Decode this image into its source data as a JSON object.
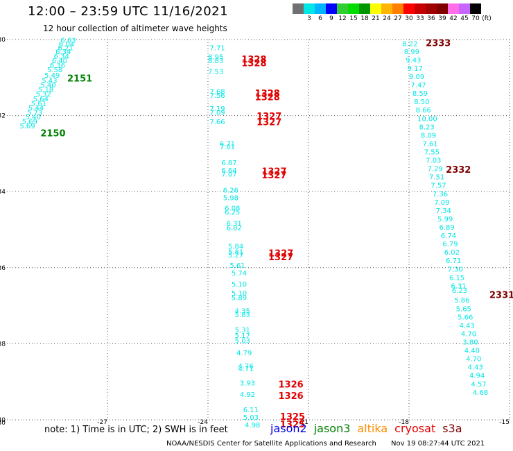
{
  "header": {
    "title": "12:00 – 23:59 UTC 11/16/2021",
    "subtitle": "12 hour collection of altimeter wave heights"
  },
  "color_scale": {
    "unit": "(ft)",
    "colors": [
      "#707070",
      "#00e5e5",
      "#00b4ff",
      "#0000ff",
      "#32cd32",
      "#00dc00",
      "#009600",
      "#ffff00",
      "#ffb400",
      "#ff7f00",
      "#ff0000",
      "#c80000",
      "#a00000",
      "#800000",
      "#ff6ee6",
      "#c864ff",
      "#000000"
    ],
    "labels": [
      "",
      "3",
      "6",
      "9",
      "12",
      "15",
      "18",
      "21",
      "24",
      "27",
      "30",
      "33",
      "36",
      "39",
      "42",
      "45",
      "70"
    ]
  },
  "chart_data": {
    "type": "scatter",
    "title": "12:00 – 23:59 UTC 11/16/2021",
    "subtitle": "12 hour collection of altimeter wave heights",
    "xlim": [
      -30,
      -15
    ],
    "ylim": [
      -40,
      -30
    ],
    "x_ticks": [
      "-27",
      "-24",
      "-21",
      "-18",
      "-15"
    ],
    "y_ticks": [
      "-30",
      "-32",
      "-34",
      "-36",
      "-38",
      "-40"
    ],
    "corner_label": "-30",
    "grid": true,
    "series": [
      {
        "name": "left track",
        "color": "#00e5e5",
        "points": [
          {
            "x": -28.4,
            "y": -30.08,
            "v": "6.63"
          },
          {
            "x": -28.45,
            "y": -30.18,
            "v": "6.04"
          },
          {
            "x": -28.48,
            "y": -30.28,
            "v": "6.21"
          },
          {
            "x": -28.55,
            "y": -30.38,
            "v": "6.34"
          },
          {
            "x": -28.6,
            "y": -30.5,
            "v": "6.34"
          },
          {
            "x": -28.66,
            "y": -30.62,
            "v": "6.40"
          },
          {
            "x": -28.72,
            "y": -30.74,
            "v": "6.36"
          },
          {
            "x": -28.8,
            "y": -30.86,
            "v": "5.58"
          },
          {
            "x": -28.88,
            "y": -31.0,
            "v": "5.49"
          },
          {
            "x": -28.96,
            "y": -31.14,
            "v": "5.43"
          },
          {
            "x": -29.0,
            "y": -31.26,
            "v": "5.40"
          },
          {
            "x": -29.07,
            "y": -31.38,
            "v": "5.18"
          },
          {
            "x": -29.14,
            "y": -31.5,
            "v": "5.32"
          },
          {
            "x": -29.22,
            "y": -31.62,
            "v": "5.64"
          },
          {
            "x": -29.28,
            "y": -31.74,
            "v": "5.61"
          },
          {
            "x": -29.36,
            "y": -31.86,
            "v": "5.44"
          },
          {
            "x": -29.4,
            "y": -31.98,
            "v": "5.73"
          },
          {
            "x": -29.45,
            "y": -32.1,
            "v": "5.40"
          },
          {
            "x": -29.55,
            "y": -32.22,
            "v": "5.69"
          },
          {
            "x": -29.62,
            "y": -32.34,
            "v": "5.69"
          }
        ]
      },
      {
        "name": "middle track",
        "color": "#00e5e5",
        "points": [
          {
            "x": -23.95,
            "y": -30.28,
            "v": "7.71"
          },
          {
            "x": -24.0,
            "y": -30.52,
            "v": "8.95"
          },
          {
            "x": -24.0,
            "y": -30.62,
            "v": "8.83"
          },
          {
            "x": -24.0,
            "y": -30.9,
            "v": "7.53"
          },
          {
            "x": -23.95,
            "y": -31.43,
            "v": "7.68"
          },
          {
            "x": -23.95,
            "y": -31.53,
            "v": "7.56"
          },
          {
            "x": -23.95,
            "y": -31.88,
            "v": "7.19"
          },
          {
            "x": -23.95,
            "y": -31.98,
            "v": "7.09"
          },
          {
            "x": -23.95,
            "y": -32.23,
            "v": "7.66"
          },
          {
            "x": -23.65,
            "y": -32.8,
            "v": "6.71"
          },
          {
            "x": -23.65,
            "y": -32.88,
            "v": "7.01"
          },
          {
            "x": -23.6,
            "y": -33.3,
            "v": "6.87"
          },
          {
            "x": -23.6,
            "y": -33.5,
            "v": "6.64"
          },
          {
            "x": -23.6,
            "y": -33.6,
            "v": "7.07"
          },
          {
            "x": -23.55,
            "y": -34.02,
            "v": "6.26"
          },
          {
            "x": -23.55,
            "y": -34.22,
            "v": "5.98"
          },
          {
            "x": -23.5,
            "y": -34.5,
            "v": "6.08"
          },
          {
            "x": -23.5,
            "y": -34.6,
            "v": "6.25"
          },
          {
            "x": -23.45,
            "y": -34.9,
            "v": "6.31"
          },
          {
            "x": -23.45,
            "y": -35.02,
            "v": "6.82"
          },
          {
            "x": -23.4,
            "y": -35.5,
            "v": "5.84"
          },
          {
            "x": -23.4,
            "y": -35.65,
            "v": "5.81"
          },
          {
            "x": -23.4,
            "y": -35.73,
            "v": "5.27"
          },
          {
            "x": -23.35,
            "y": -36.0,
            "v": "5.61"
          },
          {
            "x": -23.3,
            "y": -36.2,
            "v": "5.74"
          },
          {
            "x": -23.3,
            "y": -36.5,
            "v": "5.10"
          },
          {
            "x": -23.3,
            "y": -36.73,
            "v": "5.10"
          },
          {
            "x": -23.3,
            "y": -36.85,
            "v": "5.89"
          },
          {
            "x": -23.2,
            "y": -37.2,
            "v": "4.35"
          },
          {
            "x": -23.2,
            "y": -37.3,
            "v": "5.83"
          },
          {
            "x": -23.2,
            "y": -37.7,
            "v": "5.31"
          },
          {
            "x": -23.2,
            "y": -37.85,
            "v": "5.17"
          },
          {
            "x": -23.2,
            "y": -37.98,
            "v": "5.03"
          },
          {
            "x": -23.15,
            "y": -38.3,
            "v": "4.79"
          },
          {
            "x": -23.1,
            "y": -38.65,
            "v": "4.76"
          },
          {
            "x": -23.1,
            "y": -38.72,
            "v": "4.71"
          },
          {
            "x": -23.05,
            "y": -39.1,
            "v": "3.93"
          },
          {
            "x": -23.05,
            "y": -39.4,
            "v": "4.92"
          },
          {
            "x": -22.95,
            "y": -39.8,
            "v": "6.11"
          },
          {
            "x": -22.95,
            "y": -40.0,
            "v": "5.03"
          },
          {
            "x": -22.9,
            "y": -40.2,
            "v": "4.98"
          }
        ]
      },
      {
        "name": "right track",
        "color": "#00e5e5",
        "points": [
          {
            "x": -18.2,
            "y": -30.17,
            "v": "8.22"
          },
          {
            "x": -18.15,
            "y": -30.38,
            "v": "8.99"
          },
          {
            "x": -18.1,
            "y": -30.6,
            "v": "9.43"
          },
          {
            "x": -18.05,
            "y": -30.82,
            "v": "9.17"
          },
          {
            "x": -18.0,
            "y": -31.04,
            "v": "9.09"
          },
          {
            "x": -17.95,
            "y": -31.26,
            "v": "7.47"
          },
          {
            "x": -17.9,
            "y": -31.48,
            "v": "8.59"
          },
          {
            "x": -17.85,
            "y": -31.7,
            "v": "8.50"
          },
          {
            "x": -17.8,
            "y": -31.92,
            "v": "8.66"
          },
          {
            "x": -17.75,
            "y": -32.14,
            "v": "10.00"
          },
          {
            "x": -17.7,
            "y": -32.36,
            "v": "8.23"
          },
          {
            "x": -17.65,
            "y": -32.58,
            "v": "8.09"
          },
          {
            "x": -17.6,
            "y": -32.8,
            "v": "7.61"
          },
          {
            "x": -17.55,
            "y": -33.02,
            "v": "7.55"
          },
          {
            "x": -17.5,
            "y": -33.24,
            "v": "7.03"
          },
          {
            "x": -17.45,
            "y": -33.46,
            "v": "7.29"
          },
          {
            "x": -17.4,
            "y": -33.68,
            "v": "7.51"
          },
          {
            "x": -17.35,
            "y": -33.9,
            "v": "7.57"
          },
          {
            "x": -17.3,
            "y": -34.12,
            "v": "7.36"
          },
          {
            "x": -17.25,
            "y": -34.34,
            "v": "7.09"
          },
          {
            "x": -17.2,
            "y": -34.56,
            "v": "7.34"
          },
          {
            "x": -17.15,
            "y": -34.78,
            "v": "5.99"
          },
          {
            "x": -17.1,
            "y": -35.0,
            "v": "6.89"
          },
          {
            "x": -17.05,
            "y": -35.22,
            "v": "6.74"
          },
          {
            "x": -17.0,
            "y": -35.44,
            "v": "6.79"
          },
          {
            "x": -16.95,
            "y": -35.66,
            "v": "6.02"
          },
          {
            "x": -16.9,
            "y": -35.88,
            "v": "6.71"
          },
          {
            "x": -16.85,
            "y": -36.1,
            "v": "7.30"
          },
          {
            "x": -16.8,
            "y": -36.32,
            "v": "6.15"
          },
          {
            "x": -16.75,
            "y": -36.54,
            "v": "6.31"
          },
          {
            "x": -16.72,
            "y": -36.66,
            "v": "6.23"
          },
          {
            "x": -16.65,
            "y": -36.92,
            "v": "5.86"
          },
          {
            "x": -16.6,
            "y": -37.14,
            "v": "5.65"
          },
          {
            "x": -16.55,
            "y": -37.36,
            "v": "5.66"
          },
          {
            "x": -16.5,
            "y": -37.58,
            "v": "4.43"
          },
          {
            "x": -16.45,
            "y": -37.8,
            "v": "4.70"
          },
          {
            "x": -16.4,
            "y": -38.02,
            "v": "3.80"
          },
          {
            "x": -16.35,
            "y": -38.24,
            "v": "4.40"
          },
          {
            "x": -16.3,
            "y": -38.46,
            "v": "4.70"
          },
          {
            "x": -16.25,
            "y": -38.68,
            "v": "4.43"
          },
          {
            "x": -16.2,
            "y": -38.9,
            "v": "4.94"
          },
          {
            "x": -16.15,
            "y": -39.12,
            "v": "4.57"
          },
          {
            "x": -16.1,
            "y": -39.34,
            "v": "4.68"
          }
        ]
      }
    ],
    "annotations": [
      {
        "x": -28.2,
        "y": -31.1,
        "text": "2151",
        "color": "#008000"
      },
      {
        "x": -29.0,
        "y": -32.55,
        "text": "2150",
        "color": "#008000"
      },
      {
        "x": -23.0,
        "y": -30.6,
        "text": "1328",
        "color": "#e00000"
      },
      {
        "x": -23.0,
        "y": -30.7,
        "text": "1328",
        "color": "#e00000"
      },
      {
        "x": -22.6,
        "y": -31.5,
        "text": "1328",
        "color": "#e00000"
      },
      {
        "x": -22.6,
        "y": -31.6,
        "text": "1328",
        "color": "#e00000"
      },
      {
        "x": -22.55,
        "y": -32.1,
        "text": "1327",
        "color": "#e00000"
      },
      {
        "x": -22.55,
        "y": -32.25,
        "text": "1327",
        "color": "#e00000"
      },
      {
        "x": -22.4,
        "y": -33.55,
        "text": "1327",
        "color": "#e00000"
      },
      {
        "x": -22.4,
        "y": -33.65,
        "text": "1327",
        "color": "#e00000"
      },
      {
        "x": -22.2,
        "y": -35.7,
        "text": "1327",
        "color": "#e00000"
      },
      {
        "x": -22.2,
        "y": -35.8,
        "text": "1327",
        "color": "#e00000"
      },
      {
        "x": -21.9,
        "y": -39.15,
        "text": "1326",
        "color": "#e00000"
      },
      {
        "x": -21.9,
        "y": -39.45,
        "text": "1326",
        "color": "#e00000"
      },
      {
        "x": -21.85,
        "y": -40.0,
        "text": "1325",
        "color": "#e00000"
      },
      {
        "x": -21.85,
        "y": -40.2,
        "text": "1325",
        "color": "#e00000"
      },
      {
        "x": -17.5,
        "y": -30.17,
        "text": "2333",
        "color": "#800000"
      },
      {
        "x": -16.9,
        "y": -33.5,
        "text": "2332",
        "color": "#800000"
      },
      {
        "x": -15.6,
        "y": -36.8,
        "text": "2331",
        "color": "#800000"
      }
    ]
  },
  "notes": {
    "text": "note:  1) Time is in UTC; 2) SWH is in feet"
  },
  "satellite_legend": [
    {
      "name": "jason2",
      "color": "#0000e0"
    },
    {
      "name": "jason3",
      "color": "#008000"
    },
    {
      "name": "altika",
      "color": "#ff8c00"
    },
    {
      "name": "cryosat",
      "color": "#e00000"
    },
    {
      "name": "s3a",
      "color": "#800000"
    }
  ],
  "footer": {
    "credit": "NOAA/NESDIS Center for Satellite Applications and Research",
    "timestamp": "Nov 19 08:27:44 UTC 2021"
  }
}
